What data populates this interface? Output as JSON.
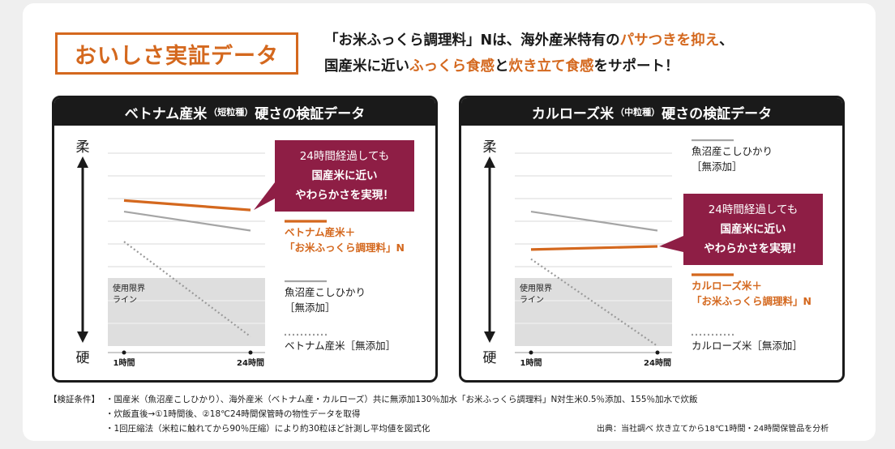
{
  "header": {
    "title": "おいしさ実証データ",
    "intro_line1": [
      "「お米ふっくら調理料」Nは、海外産米特有の",
      "パサつきを抑え",
      "、"
    ],
    "intro_line2": [
      "国産米に近い",
      "ふっくら食感",
      "と",
      "炊き立て食感",
      "をサポート！"
    ]
  },
  "colors": {
    "accent": "#d4681e",
    "callout": "#8e1e45",
    "gray_line": "#a5a5a5",
    "limit_area": "#dedede",
    "dark": "#1a1a1a"
  },
  "chart_data": [
    {
      "type": "line",
      "title_main": "ベトナム産米",
      "title_sub": "（短粒種）",
      "title_tail": "硬さの検証データ",
      "y_top_label": "柔",
      "y_bottom_label": "硬",
      "categories": [
        "1時間",
        "24時間"
      ],
      "limit_label": [
        "使用限界",
        "ライン"
      ],
      "callout": [
        "24時間経過しても",
        "国産米に近い",
        "やわらかさを実現！"
      ],
      "series": [
        {
          "name": "ベトナム産米＋「お米ふっくら調理料」N",
          "legend": [
            "ベトナム産米＋",
            "「お米ふっくら調理料」N"
          ],
          "style": "orange",
          "values": [
            0.66,
            0.6
          ]
        },
        {
          "name": "魚沼産こしひかり［無添加］",
          "legend": [
            "魚沼産こしひかり",
            "［無添加］"
          ],
          "style": "gray",
          "values": [
            0.59,
            0.47
          ]
        },
        {
          "name": "ベトナム産米［無添加］",
          "legend": [
            "ベトナム産米［無添加］"
          ],
          "style": "dotted",
          "values": [
            0.4,
            -0.2
          ]
        }
      ]
    },
    {
      "type": "line",
      "title_main": "カルローズ米",
      "title_sub": "（中粒種）",
      "title_tail": "硬さの検証データ",
      "y_top_label": "柔",
      "y_bottom_label": "硬",
      "categories": [
        "1時間",
        "24時間"
      ],
      "limit_label": [
        "使用限界",
        "ライン"
      ],
      "callout": [
        "24時間経過しても",
        "国産米に近い",
        "やわらかさを実現！"
      ],
      "series": [
        {
          "name": "魚沼産こしひかり［無添加］",
          "legend": [
            "魚沼産こしひかり",
            "［無添加］"
          ],
          "style": "gray",
          "values": [
            0.59,
            0.47
          ]
        },
        {
          "name": "カルローズ米＋「お米ふっくら調理料」N",
          "legend": [
            "カルローズ米＋",
            "「お米ふっくら調理料」N"
          ],
          "style": "orange",
          "values": [
            0.35,
            0.37
          ]
        },
        {
          "name": "カルローズ米［無添加］",
          "legend": [
            "カルローズ米［無添加］"
          ],
          "style": "dotted",
          "values": [
            0.29,
            -0.26
          ]
        }
      ]
    }
  ],
  "footer": {
    "label": "【検証条件】",
    "items": [
      "・国産米（魚沼産こしひかり）、海外産米（ベトナム産・カルローズ）共に無添加130％加水「お米ふっくら調理料」N対生米0.5％添加、155％加水で炊飯",
      "・炊飯直後→①1時間後、②18℃24時間保管時の物性データを取得",
      "・1回圧縮法（米粒に触れてから90％圧縮）により約30粒ほど計測し平均値を図式化"
    ],
    "source": "出典：当社調べ  炊き立てから18℃1時間・24時間保管品を分析"
  }
}
